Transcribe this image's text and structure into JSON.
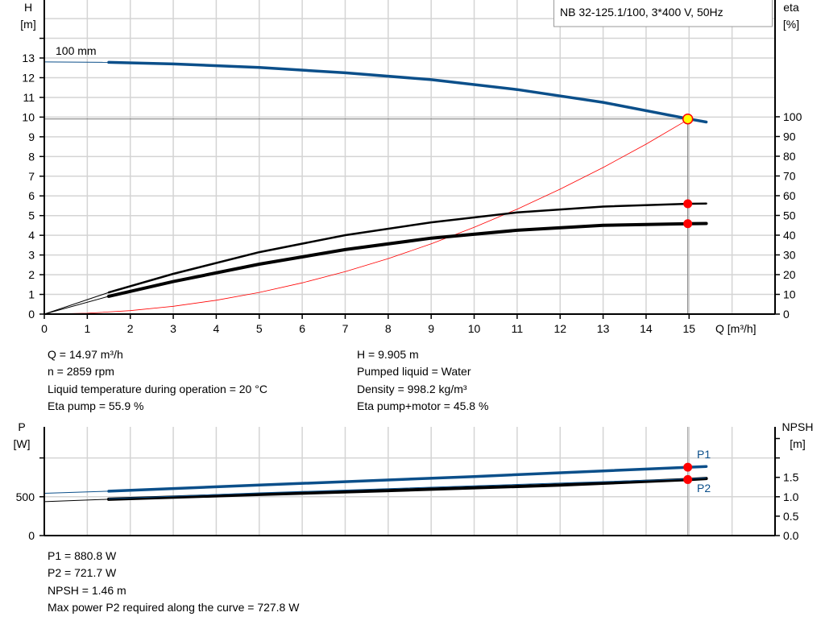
{
  "chart_data": [
    {
      "type": "line",
      "title": "NB 32-125.1/100, 3*400 V, 50Hz",
      "xlabel": "Q [m³/h]",
      "ylabel_left": {
        "name": "H",
        "unit": "[m]"
      },
      "ylabel_right": {
        "name": "eta",
        "unit": "[%]"
      },
      "xlim": [
        0,
        17
      ],
      "ylim_left": [
        0,
        15
      ],
      "ylim_right": [
        0,
        100
      ],
      "x_ticks": [
        "0",
        "1",
        "2",
        "3",
        "4",
        "5",
        "6",
        "7",
        "8",
        "9",
        "10",
        "11",
        "12",
        "13",
        "14",
        "15"
      ],
      "y_left_ticks": [
        "0",
        "1",
        "2",
        "3",
        "4",
        "5",
        "6",
        "7",
        "8",
        "9",
        "10",
        "11",
        "12",
        "13"
      ],
      "y_right_ticks": [
        "0",
        "10",
        "20",
        "30",
        "40",
        "50",
        "60",
        "70",
        "80",
        "90",
        "100"
      ],
      "grid": true,
      "curve_label": "100 mm",
      "series": [
        {
          "key": "H",
          "axis": "left",
          "color": "#0b4f8a",
          "x": [
            0,
            1.5,
            3,
            5,
            7,
            9,
            11,
            13,
            15,
            15.4
          ],
          "y": [
            12.8,
            12.78,
            12.7,
            12.52,
            12.25,
            11.9,
            11.4,
            10.75,
            9.905,
            9.75
          ]
        },
        {
          "key": "eta_pump",
          "axis": "right",
          "color": "#000000",
          "x": [
            0,
            1.5,
            3,
            5,
            7,
            9,
            11,
            13,
            15,
            15.4
          ],
          "y": [
            0,
            11,
            20.4,
            31.4,
            40,
            46.5,
            51.5,
            54.5,
            55.9,
            56
          ]
        },
        {
          "key": "eta_pump_motor",
          "axis": "right",
          "color": "#000000",
          "x": [
            0,
            1.5,
            3,
            5,
            7,
            9,
            11,
            13,
            15,
            15.4
          ],
          "y": [
            0,
            9,
            16.5,
            25.3,
            32.7,
            38.5,
            42.5,
            45,
            45.8,
            45.9
          ]
        },
        {
          "key": "system_curve",
          "axis": "left",
          "color": "#ff0000",
          "x": [
            0,
            1,
            2,
            3,
            4,
            5,
            6,
            7,
            8,
            9,
            10,
            11,
            12,
            13,
            14,
            15
          ],
          "y": [
            0,
            0.044,
            0.176,
            0.396,
            0.704,
            1.1,
            1.585,
            2.157,
            2.817,
            3.566,
            4.402,
            5.327,
            6.339,
            7.44,
            8.628,
            9.905
          ]
        }
      ],
      "operating_point": {
        "Q": 14.97,
        "H": 9.905,
        "eta_pump": 55.9,
        "eta_pump_motor": 45.8
      }
    },
    {
      "type": "line",
      "ylabel_left": {
        "name": "P",
        "unit": "[W]"
      },
      "ylabel_right": {
        "name": "NPSH",
        "unit": "[m]"
      },
      "xlim": [
        0,
        17
      ],
      "ylim_left": [
        0,
        1400
      ],
      "ylim_right": [
        0,
        2.8
      ],
      "y_left_ticks": [
        "0",
        "500"
      ],
      "y_right_ticks": [
        "0.0",
        "0.5",
        "1.0",
        "1.5"
      ],
      "grid": true,
      "series": [
        {
          "key": "P1",
          "name": "P1",
          "axis": "left",
          "color": "#0b4f8a",
          "x": [
            0,
            1.5,
            5,
            10,
            15,
            15.4
          ],
          "y": [
            545,
            572,
            650,
            760,
            880.8,
            890
          ]
        },
        {
          "key": "P2",
          "name": "P2",
          "axis": "left",
          "color": "#000000",
          "x": [
            0,
            1.5,
            5,
            8,
            12,
            15,
            15.4
          ],
          "y": [
            437,
            468,
            530,
            580,
            650,
            721.7,
            735
          ]
        },
        {
          "key": "NPSH",
          "axis": "right",
          "color": "#0b4f8a",
          "x": [
            1.5,
            5,
            10,
            15,
            15.4
          ],
          "y": [
            0.95,
            1.1,
            1.28,
            1.46,
            1.49
          ]
        }
      ],
      "operating_point": {
        "Q": 14.97,
        "P1": 880.8,
        "P2": 721.7
      }
    }
  ],
  "info_top": {
    "left": [
      "Q = 14.97 m³/h",
      "n = 2859 rpm",
      "Liquid temperature during operation = 20 °C",
      "Eta pump = 55.9 %"
    ],
    "right": [
      "H = 9.905 m",
      "Pumped liquid = Water",
      "Density = 998.2 kg/m³",
      "Eta pump+motor = 45.8 %"
    ]
  },
  "info_bottom": [
    "P1 = 880.8 W",
    "P2 = 721.7 W",
    "NPSH = 1.46 m",
    "Max power P2 required along the curve = 727.8 W"
  ]
}
